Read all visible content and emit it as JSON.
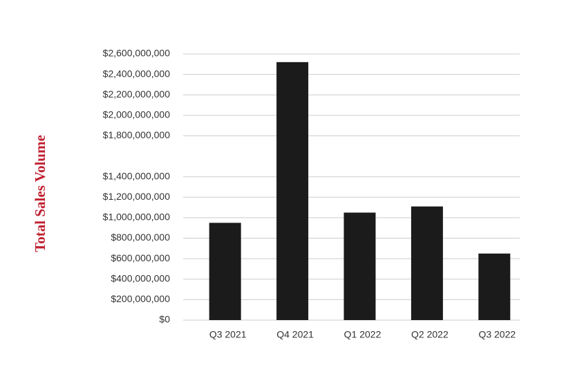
{
  "chart_data": {
    "type": "bar",
    "y_label": "Total Sales Volume",
    "categories": [
      "Q3 2021",
      "Q4 2021",
      "Q1 2022",
      "Q2 2022",
      "Q3 2022"
    ],
    "values": [
      950000000,
      2520000000,
      1050000000,
      1110000000,
      650000000
    ],
    "color": "#1c1b1b",
    "ylim": [
      0,
      2600000000
    ],
    "yticks": [
      {
        "value": 0,
        "label": "$0"
      },
      {
        "value": 200000000,
        "label": "$200,000,000"
      },
      {
        "value": 400000000,
        "label": "$400,000,000"
      },
      {
        "value": 600000000,
        "label": "$600,000,000"
      },
      {
        "value": 800000000,
        "label": "$800,000,000"
      },
      {
        "value": 1000000000,
        "label": "$1,000,000,000"
      },
      {
        "value": 1200000000,
        "label": "$1,200,000,000"
      },
      {
        "value": 1400000000,
        "label": "$1,400,000,000"
      },
      {
        "value": 1800000000,
        "label": "$1,800,000,000"
      },
      {
        "value": 2000000000,
        "label": "$2,000,000,000"
      },
      {
        "value": 2200000000,
        "label": "$2,200,000,000"
      },
      {
        "value": 2400000000,
        "label": "$2,400,000,000"
      },
      {
        "value": 2600000000,
        "label": "$2,600,000,000"
      }
    ],
    "grid": true
  }
}
